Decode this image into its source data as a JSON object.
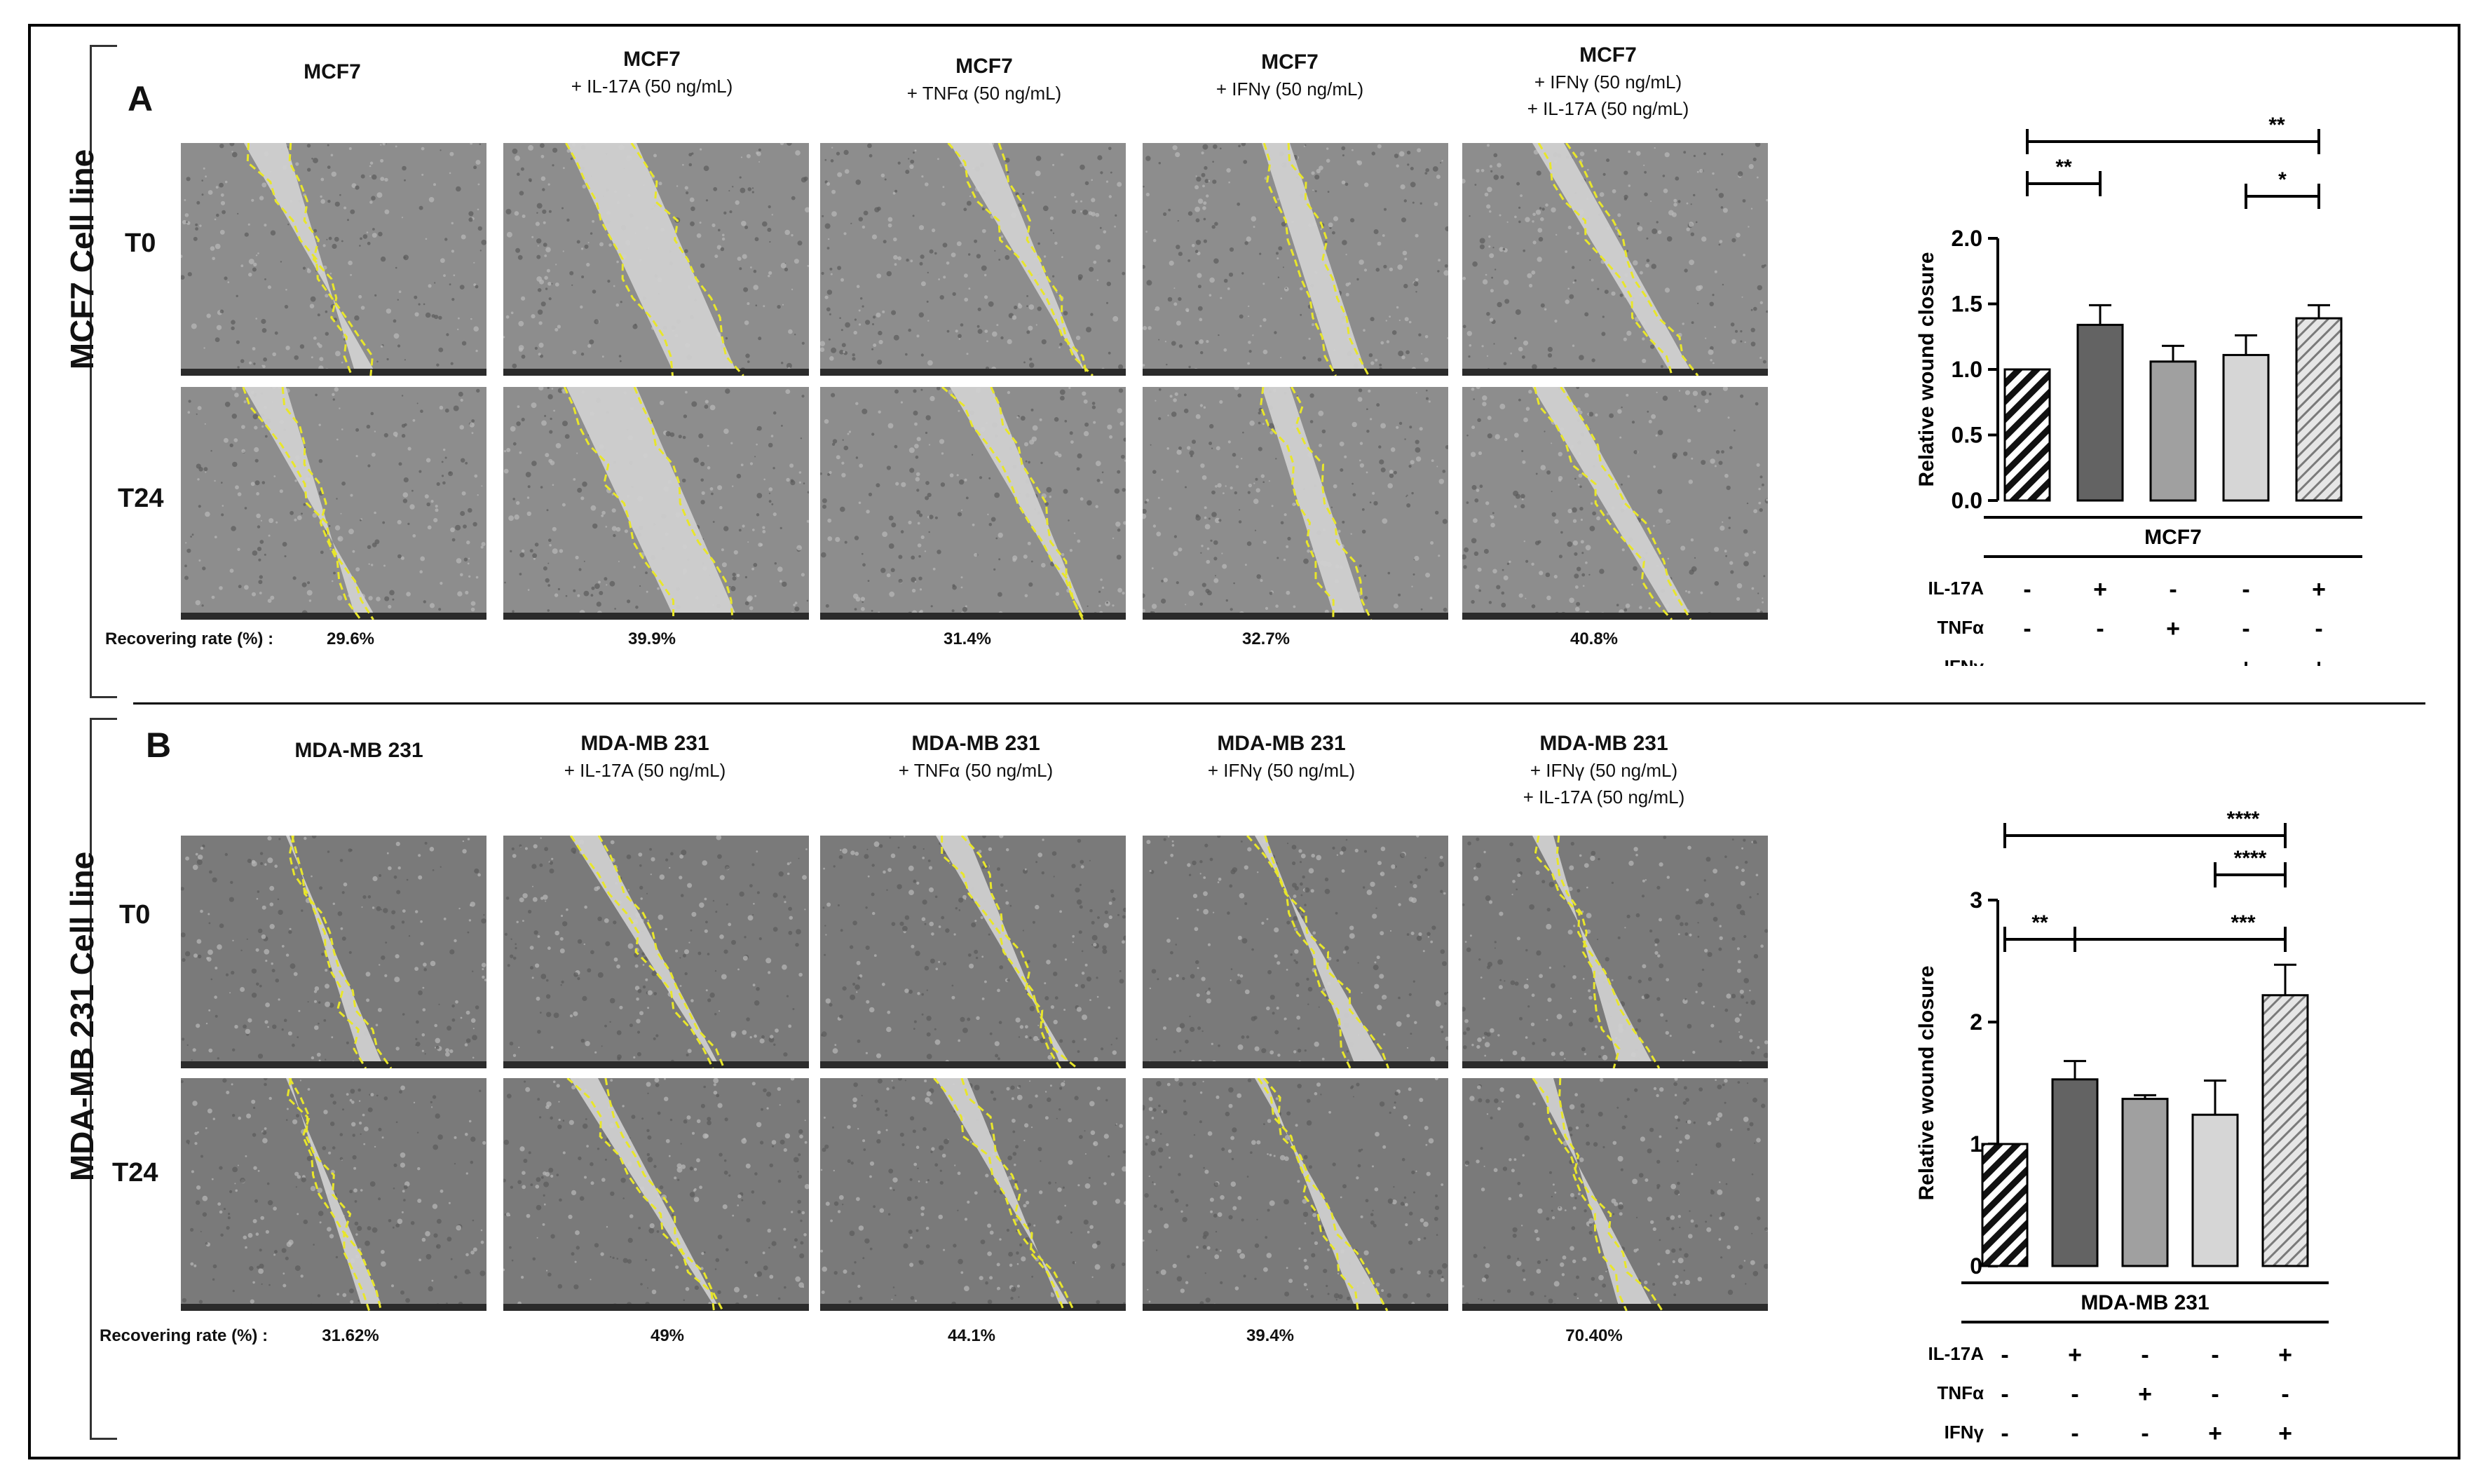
{
  "panels": [
    {
      "letter": "A",
      "cell_line_label": "MCF7 Cell line",
      "rows": [
        "T0",
        "T24"
      ],
      "columns": [
        {
          "title": "MCF7",
          "subtitle": ""
        },
        {
          "title": "MCF7",
          "subtitle": "+ IL-17A (50 ng/mL)"
        },
        {
          "title": "MCF7",
          "subtitle": "+ TNFα (50 ng/mL)"
        },
        {
          "title": "MCF7",
          "subtitle": "+ IFNγ (50 ng/mL)"
        },
        {
          "title": "MCF7",
          "subtitle": "+ IFNγ (50 ng/mL)",
          "subtitle2": "+ IL-17A (50 ng/mL)"
        }
      ],
      "recovering_label": "Recovering rate (%) :",
      "recovering_rates": [
        "29.6%",
        "39.9%",
        "31.4%",
        "32.7%",
        "40.8%"
      ]
    },
    {
      "letter": "B",
      "cell_line_label": "MDA-MB 231 Cell line",
      "rows": [
        "T0",
        "T24"
      ],
      "columns": [
        {
          "title": "MDA-MB 231",
          "subtitle": ""
        },
        {
          "title": "MDA-MB 231",
          "subtitle": "+ IL-17A (50 ng/mL)"
        },
        {
          "title": "MDA-MB 231",
          "subtitle": "+ TNFα (50 ng/mL)"
        },
        {
          "title": "MDA-MB 231",
          "subtitle": "+ IFNγ (50 ng/mL)"
        },
        {
          "title": "MDA-MB 231",
          "subtitle": "+ IFNγ (50 ng/mL)",
          "subtitle2": "+ IL-17A (50 ng/mL)"
        }
      ],
      "recovering_label": "Recovering rate (%) :",
      "recovering_rates": [
        "31.62%",
        "49%",
        "44.1%",
        "39.4%",
        "70.40%"
      ]
    }
  ],
  "chart_data": [
    {
      "type": "bar",
      "title": "",
      "ylabel": "Relative wound closure",
      "group_label": "MCF7",
      "ylim": [
        0,
        2.0
      ],
      "yticks": [
        "0.0",
        "0.5",
        "1.0",
        "1.5",
        "2.0"
      ],
      "ytick_values": [
        0,
        0.5,
        1.0,
        1.5,
        2.0
      ],
      "values": [
        1.0,
        1.34,
        1.06,
        1.11,
        1.39
      ],
      "errors": [
        0,
        0.15,
        0.12,
        0.15,
        0.1
      ],
      "fills": [
        "hatch-black",
        "#636363",
        "#a0a0a0",
        "#d6d6d6",
        "hatch-gray"
      ],
      "treatments": [
        {
          "name": "IL-17A",
          "signs": [
            "-",
            "+",
            "-",
            "-",
            "+"
          ]
        },
        {
          "name": "TNFα",
          "signs": [
            "-",
            "-",
            "+",
            "-",
            "-"
          ]
        },
        {
          "name": "IFNγ",
          "signs": [
            "-",
            "-",
            "-",
            "+",
            "+"
          ]
        }
      ],
      "significance": [
        {
          "from": 0,
          "to": 4,
          "label": "**"
        },
        {
          "from": 0,
          "to": 1,
          "label": "**"
        },
        {
          "from": 3,
          "to": 4,
          "label": "*"
        }
      ]
    },
    {
      "type": "bar",
      "title": "",
      "ylabel": "Relative wound closure",
      "group_label": "MDA-MB 231",
      "ylim": [
        0,
        3
      ],
      "yticks": [
        "0",
        "1",
        "2",
        "3"
      ],
      "ytick_values": [
        0,
        1,
        2,
        3
      ],
      "values": [
        1.0,
        1.53,
        1.37,
        1.24,
        2.22
      ],
      "errors": [
        0,
        0.15,
        0.03,
        0.28,
        0.25
      ],
      "fills": [
        "hatch-black",
        "#636363",
        "#a0a0a0",
        "#d6d6d6",
        "hatch-gray"
      ],
      "treatments": [
        {
          "name": "IL-17A",
          "signs": [
            "-",
            "+",
            "-",
            "-",
            "+"
          ]
        },
        {
          "name": "TNFα",
          "signs": [
            "-",
            "-",
            "+",
            "-",
            "-"
          ]
        },
        {
          "name": "IFNγ",
          "signs": [
            "-",
            "-",
            "-",
            "+",
            "+"
          ]
        }
      ],
      "significance": [
        {
          "from": 0,
          "to": 4,
          "label": "****"
        },
        {
          "from": 3,
          "to": 4,
          "label": "****"
        },
        {
          "from": 0,
          "to": 1,
          "label": "**"
        },
        {
          "from": 1,
          "to": 4,
          "label": "***"
        }
      ]
    }
  ]
}
